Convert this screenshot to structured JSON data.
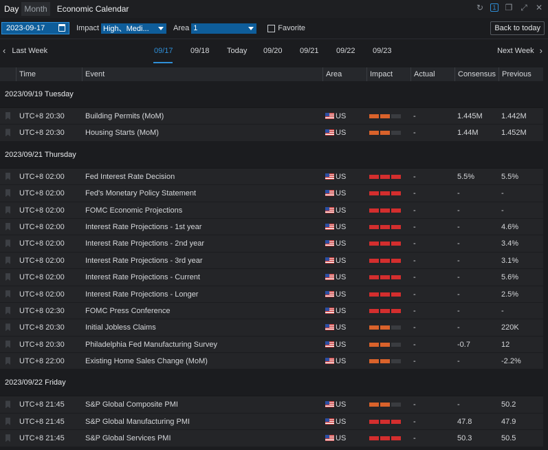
{
  "tabs": [
    "Day",
    "Month"
  ],
  "active_tab": "Day",
  "window_title": "Economic Calendar",
  "window_controls": {
    "badge_count": "1"
  },
  "filter": {
    "date": "2023-09-17",
    "impact_label": "Impact",
    "impact_value": "High、Medi...",
    "area_label": "Area",
    "area_value": "1",
    "favorite_label": "Favorite",
    "back_label": "Back to today"
  },
  "week_nav": {
    "prev_label": "Last Week",
    "next_label": "Next Week",
    "days": [
      "09/17",
      "09/18",
      "Today",
      "09/20",
      "09/21",
      "09/22",
      "09/23"
    ],
    "active_day": "09/17"
  },
  "columns": [
    "Time",
    "Event",
    "Area",
    "Impact",
    "Actual",
    "Consensus",
    "Previous"
  ],
  "colors": {
    "accent": "#2f8fd8",
    "impact_high": "#d32e2e",
    "impact_medium": "#d9622b"
  },
  "groups": [
    {
      "date_label": "2023/09/19 Tuesday",
      "events": [
        {
          "time": "UTC+8 20:30",
          "event": "Building Permits (MoM)",
          "area": "US",
          "impact": 2,
          "actual": "-",
          "consensus": "1.445M",
          "previous": "1.442M"
        },
        {
          "time": "UTC+8 20:30",
          "event": "Housing Starts (MoM)",
          "area": "US",
          "impact": 2,
          "actual": "-",
          "consensus": "1.44M",
          "previous": "1.452M"
        }
      ]
    },
    {
      "date_label": "2023/09/21 Thursday",
      "events": [
        {
          "time": "UTC+8 02:00",
          "event": "Fed Interest Rate Decision",
          "area": "US",
          "impact": 3,
          "actual": "-",
          "consensus": "5.5%",
          "previous": "5.5%"
        },
        {
          "time": "UTC+8 02:00",
          "event": "Fed's Monetary Policy Statement",
          "area": "US",
          "impact": 3,
          "actual": "-",
          "consensus": "-",
          "previous": "-"
        },
        {
          "time": "UTC+8 02:00",
          "event": "FOMC Economic Projections",
          "area": "US",
          "impact": 3,
          "actual": "-",
          "consensus": "-",
          "previous": "-"
        },
        {
          "time": "UTC+8 02:00",
          "event": "Interest Rate Projections - 1st year",
          "area": "US",
          "impact": 3,
          "actual": "-",
          "consensus": "-",
          "previous": "4.6%"
        },
        {
          "time": "UTC+8 02:00",
          "event": "Interest Rate Projections - 2nd year",
          "area": "US",
          "impact": 3,
          "actual": "-",
          "consensus": "-",
          "previous": "3.4%"
        },
        {
          "time": "UTC+8 02:00",
          "event": "Interest Rate Projections - 3rd year",
          "area": "US",
          "impact": 3,
          "actual": "-",
          "consensus": "-",
          "previous": "3.1%"
        },
        {
          "time": "UTC+8 02:00",
          "event": "Interest Rate Projections - Current",
          "area": "US",
          "impact": 3,
          "actual": "-",
          "consensus": "-",
          "previous": "5.6%"
        },
        {
          "time": "UTC+8 02:00",
          "event": "Interest Rate Projections - Longer",
          "area": "US",
          "impact": 3,
          "actual": "-",
          "consensus": "-",
          "previous": "2.5%"
        },
        {
          "time": "UTC+8 02:30",
          "event": "FOMC Press Conference",
          "area": "US",
          "impact": 3,
          "actual": "-",
          "consensus": "-",
          "previous": "-"
        },
        {
          "time": "UTC+8 20:30",
          "event": "Initial Jobless Claims",
          "area": "US",
          "impact": 2,
          "actual": "-",
          "consensus": "-",
          "previous": "220K"
        },
        {
          "time": "UTC+8 20:30",
          "event": "Philadelphia Fed Manufacturing Survey",
          "area": "US",
          "impact": 2,
          "actual": "-",
          "consensus": "-0.7",
          "previous": "12"
        },
        {
          "time": "UTC+8 22:00",
          "event": "Existing Home Sales Change (MoM)",
          "area": "US",
          "impact": 2,
          "actual": "-",
          "consensus": "-",
          "previous": "-2.2%"
        }
      ]
    },
    {
      "date_label": "2023/09/22 Friday",
      "events": [
        {
          "time": "UTC+8 21:45",
          "event": "S&P Global Composite PMI",
          "area": "US",
          "impact": 2,
          "actual": "-",
          "consensus": "-",
          "previous": "50.2"
        },
        {
          "time": "UTC+8 21:45",
          "event": "S&P Global Manufacturing PMI",
          "area": "US",
          "impact": 3,
          "actual": "-",
          "consensus": "47.8",
          "previous": "47.9"
        },
        {
          "time": "UTC+8 21:45",
          "event": "S&P Global Services PMI",
          "area": "US",
          "impact": 3,
          "actual": "-",
          "consensus": "50.3",
          "previous": "50.5"
        }
      ]
    }
  ]
}
